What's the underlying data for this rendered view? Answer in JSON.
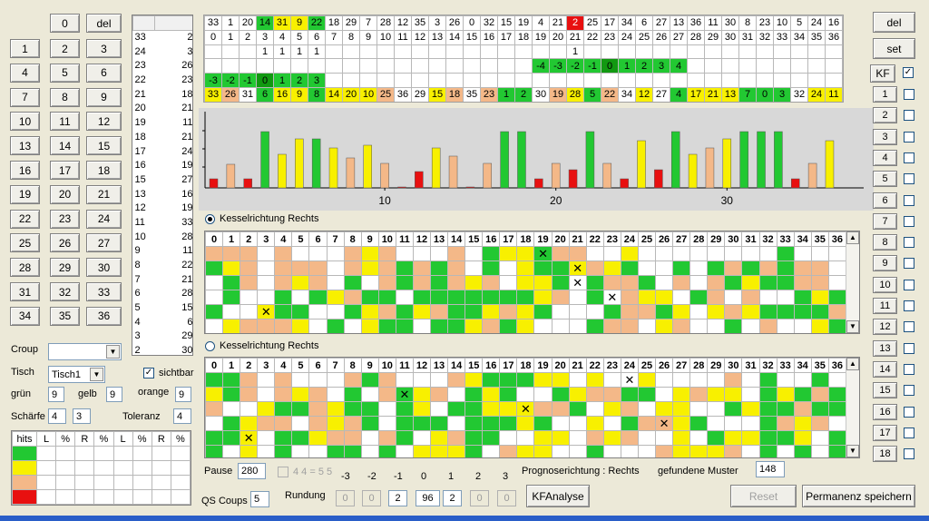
{
  "keypad": {
    "top": [
      "0",
      "del"
    ],
    "numbers": [
      "1",
      "2",
      "3",
      "4",
      "5",
      "6",
      "7",
      "8",
      "9",
      "10",
      "11",
      "12",
      "13",
      "14",
      "15",
      "16",
      "17",
      "18",
      "19",
      "20",
      "21",
      "22",
      "23",
      "24",
      "25",
      "26",
      "27",
      "28",
      "29",
      "30",
      "31",
      "32",
      "33",
      "34",
      "35",
      "36"
    ]
  },
  "side_list": [
    [
      "",
      ""
    ],
    [
      "33",
      "2"
    ],
    [
      "24",
      "3"
    ],
    [
      "23",
      "26"
    ],
    [
      "22",
      "23"
    ],
    [
      "21",
      "18"
    ],
    [
      "20",
      "21"
    ],
    [
      "19",
      "11"
    ],
    [
      "18",
      "21"
    ],
    [
      "17",
      "24"
    ],
    [
      "16",
      "19"
    ],
    [
      "15",
      "27"
    ],
    [
      "13",
      "16"
    ],
    [
      "12",
      "19"
    ],
    [
      "11",
      "33"
    ],
    [
      "10",
      "28"
    ],
    [
      "9",
      "11"
    ],
    [
      "8",
      "22"
    ],
    [
      "7",
      "21"
    ],
    [
      "6",
      "28"
    ],
    [
      "5",
      "15"
    ],
    [
      "4",
      "6"
    ],
    [
      "3",
      "29"
    ],
    [
      "2",
      "30"
    ]
  ],
  "top_table": {
    "row1": [
      [
        "33",
        "w"
      ],
      [
        "1",
        "w"
      ],
      [
        "20",
        "w"
      ],
      [
        "14",
        "g"
      ],
      [
        "31",
        "y"
      ],
      [
        "9",
        "y"
      ],
      [
        "22",
        "g"
      ],
      [
        "18",
        "w"
      ],
      [
        "29",
        "w"
      ],
      [
        "7",
        "w"
      ],
      [
        "28",
        "w"
      ],
      [
        "12",
        "w"
      ],
      [
        "35",
        "w"
      ],
      [
        "3",
        "w"
      ],
      [
        "26",
        "w"
      ],
      [
        "0",
        "w"
      ],
      [
        "32",
        "w"
      ],
      [
        "15",
        "w"
      ],
      [
        "19",
        "w"
      ],
      [
        "4",
        "w"
      ],
      [
        "21",
        "w"
      ],
      [
        "2",
        "r"
      ],
      [
        "25",
        "w"
      ],
      [
        "17",
        "w"
      ],
      [
        "34",
        "w"
      ],
      [
        "6",
        "w"
      ],
      [
        "27",
        "w"
      ],
      [
        "13",
        "w"
      ],
      [
        "36",
        "w"
      ],
      [
        "11",
        "w"
      ],
      [
        "30",
        "w"
      ],
      [
        "8",
        "w"
      ],
      [
        "23",
        "w"
      ],
      [
        "10",
        "w"
      ],
      [
        "5",
        "w"
      ],
      [
        "24",
        "w"
      ],
      [
        "16",
        "w"
      ]
    ],
    "row2": [
      "0",
      "1",
      "2",
      "3",
      "4",
      "5",
      "6",
      "7",
      "8",
      "9",
      "10",
      "11",
      "12",
      "13",
      "14",
      "15",
      "16",
      "17",
      "18",
      "19",
      "20",
      "21",
      "22",
      "23",
      "24",
      "25",
      "26",
      "27",
      "28",
      "29",
      "30",
      "31",
      "32",
      "33",
      "34",
      "35",
      "36"
    ],
    "row3": [
      [
        "",
        ""
      ],
      [
        "",
        ""
      ],
      [
        "",
        ""
      ],
      [
        "1",
        "w"
      ],
      [
        "1",
        "w"
      ],
      [
        "1",
        "w"
      ],
      [
        "1",
        "w"
      ],
      [
        "",
        ""
      ],
      [
        "",
        ""
      ],
      [
        "",
        ""
      ],
      [
        "",
        ""
      ],
      [
        "",
        ""
      ],
      [
        "",
        ""
      ],
      [
        "",
        ""
      ],
      [
        "",
        ""
      ],
      [
        "",
        ""
      ],
      [
        "",
        ""
      ],
      [
        "",
        ""
      ],
      [
        "",
        ""
      ],
      [
        "",
        ""
      ],
      [
        "",
        ""
      ],
      [
        "1",
        "w"
      ],
      [
        "",
        ""
      ],
      [
        "",
        ""
      ],
      [
        "",
        ""
      ],
      [
        "",
        ""
      ],
      [
        "",
        ""
      ],
      [
        "",
        ""
      ],
      [
        "",
        ""
      ],
      [
        "",
        ""
      ],
      [
        "",
        ""
      ],
      [
        "",
        ""
      ],
      [
        "",
        ""
      ],
      [
        "",
        ""
      ],
      [
        "",
        ""
      ],
      [
        "",
        ""
      ],
      [
        "",
        ""
      ]
    ],
    "row4": [
      [
        "",
        ""
      ],
      [
        "",
        ""
      ],
      [
        "",
        ""
      ],
      [
        "",
        ""
      ],
      [
        "",
        ""
      ],
      [
        "",
        ""
      ],
      [
        "",
        ""
      ],
      [
        "",
        ""
      ],
      [
        "",
        ""
      ],
      [
        "",
        ""
      ],
      [
        "",
        ""
      ],
      [
        "",
        ""
      ],
      [
        "",
        ""
      ],
      [
        "",
        ""
      ],
      [
        "",
        ""
      ],
      [
        "",
        ""
      ],
      [
        "",
        ""
      ],
      [
        "",
        ""
      ],
      [
        "",
        ""
      ],
      [
        "-4",
        "g"
      ],
      [
        "-3",
        "g"
      ],
      [
        "-2",
        "g"
      ],
      [
        "-1",
        "g"
      ],
      [
        "0",
        "dg"
      ],
      [
        "1",
        "g"
      ],
      [
        "2",
        "g"
      ],
      [
        "3",
        "g"
      ],
      [
        "4",
        "g"
      ],
      [
        "",
        ""
      ],
      [
        "",
        ""
      ],
      [
        "",
        ""
      ],
      [
        "",
        ""
      ],
      [
        "",
        ""
      ],
      [
        "",
        ""
      ],
      [
        "",
        ""
      ],
      [
        "",
        ""
      ],
      [
        "",
        ""
      ]
    ],
    "row5": [
      [
        "-3",
        "g"
      ],
      [
        "-2",
        "g"
      ],
      [
        "-1",
        "g"
      ],
      [
        "0",
        "dg"
      ],
      [
        "1",
        "g"
      ],
      [
        "2",
        "g"
      ],
      [
        "3",
        "g"
      ],
      [
        "",
        ""
      ],
      [
        "",
        ""
      ],
      [
        "",
        ""
      ],
      [
        "",
        ""
      ],
      [
        "",
        ""
      ],
      [
        "",
        ""
      ],
      [
        "",
        ""
      ],
      [
        "",
        ""
      ],
      [
        "",
        ""
      ],
      [
        "",
        ""
      ],
      [
        "",
        ""
      ],
      [
        "",
        ""
      ],
      [
        "",
        ""
      ],
      [
        "",
        ""
      ],
      [
        "",
        ""
      ],
      [
        "",
        ""
      ],
      [
        "",
        ""
      ],
      [
        "",
        ""
      ],
      [
        "",
        ""
      ],
      [
        "",
        ""
      ],
      [
        "",
        ""
      ],
      [
        "",
        ""
      ],
      [
        "",
        ""
      ],
      [
        "",
        ""
      ],
      [
        "",
        ""
      ],
      [
        "",
        ""
      ],
      [
        "",
        ""
      ],
      [
        "",
        ""
      ],
      [
        "",
        ""
      ],
      [
        "",
        ""
      ]
    ],
    "row6": [
      [
        "33",
        "y"
      ],
      [
        "26",
        "o"
      ],
      [
        "31",
        "w"
      ],
      [
        "6",
        "g"
      ],
      [
        "16",
        "y"
      ],
      [
        "9",
        "y"
      ],
      [
        "8",
        "g"
      ],
      [
        "14",
        "y"
      ],
      [
        "20",
        "y"
      ],
      [
        "10",
        "y"
      ],
      [
        "25",
        "o"
      ],
      [
        "36",
        "w"
      ],
      [
        "29",
        "w"
      ],
      [
        "15",
        "y"
      ],
      [
        "18",
        "o"
      ],
      [
        "35",
        "w"
      ],
      [
        "23",
        "o"
      ],
      [
        "1",
        "g"
      ],
      [
        "2",
        "g"
      ],
      [
        "30",
        "w"
      ],
      [
        "19",
        "o"
      ],
      [
        "28",
        "y"
      ],
      [
        "5",
        "g"
      ],
      [
        "22",
        "o"
      ],
      [
        "34",
        "w"
      ],
      [
        "12",
        "y"
      ],
      [
        "27",
        "w"
      ],
      [
        "4",
        "g"
      ],
      [
        "17",
        "y"
      ],
      [
        "21",
        "y"
      ],
      [
        "13",
        "y"
      ],
      [
        "7",
        "g"
      ],
      [
        "0",
        "g"
      ],
      [
        "3",
        "g"
      ],
      [
        "32",
        "w"
      ],
      [
        "24",
        "y"
      ],
      [
        "11",
        "y"
      ]
    ]
  },
  "bar_chart": {
    "colors": [
      "r",
      "o",
      "r",
      "g",
      "y",
      "y",
      "g",
      "y",
      "o",
      "y",
      "o",
      "r",
      "r",
      "y",
      "o",
      "r",
      "o",
      "g",
      "g",
      "r",
      "o",
      "r",
      "g",
      "o",
      "r",
      "y",
      "r",
      "g",
      "y",
      "o",
      "y",
      "g",
      "g",
      "g",
      "r",
      "o",
      "y"
    ],
    "values": [
      10,
      26,
      10,
      62,
      37,
      54,
      54,
      44,
      33,
      47,
      27,
      1,
      18,
      44,
      35,
      1,
      27,
      62,
      62,
      10,
      27,
      20,
      62,
      27,
      10,
      52,
      20,
      62,
      37,
      44,
      54,
      62,
      62,
      62,
      10,
      27,
      52
    ],
    "x_ticks": [
      "10",
      "20",
      "30"
    ]
  },
  "grid1": {
    "radio_label": "Kesselrichtung Rechts",
    "headers": [
      "0",
      "1",
      "2",
      "3",
      "4",
      "5",
      "6",
      "7",
      "8",
      "9",
      "10",
      "11",
      "12",
      "13",
      "14",
      "15",
      "16",
      "17",
      "18",
      "19",
      "20",
      "21",
      "22",
      "23",
      "24",
      "25",
      "26",
      "27",
      "28",
      "29",
      "30",
      "31",
      "32",
      "33",
      "34",
      "35",
      "36"
    ],
    "rows": [
      "ooowowwwoyowwwowgyygoowwywwwwwwwwgwwww",
      "gyowooowoyogogowgwyggyoygwwgwgogogoow",
      "wgowoyowgwogogoyowyygwgoogwowogyggoow",
      "wgwwgwgyoggwgggggggyowgwoyywgowowwgyg",
      "gwwyggwwgyogyoggyoygwwwgoogywyoyggggo",
      "wyoooywgwyggwggyogywwwgoowyowwgwowwyg",
      "yogywggygwggogwgyywgggyowwwgwwwgwowwg"
    ],
    "marks": [
      [
        0,
        19
      ],
      [
        1,
        21
      ],
      [
        2,
        21
      ],
      [
        3,
        23
      ],
      [
        4,
        3
      ]
    ]
  },
  "grid2": {
    "radio_label": "Kesselrichtung Rechts",
    "headers": [
      "0",
      "1",
      "2",
      "3",
      "4",
      "5",
      "6",
      "7",
      "8",
      "9",
      "10",
      "11",
      "12",
      "13",
      "14",
      "15",
      "16",
      "17",
      "18",
      "19",
      "20",
      "21",
      "22",
      "23",
      "24",
      "25",
      "26",
      "27",
      "28",
      "29",
      "30",
      "31",
      "32",
      "33",
      "34",
      "35",
      "36"
    ],
    "rows": [
      "ggowowwwogowwwoygggyywywwywwwwowgwwgw",
      "ygowoyowgwogyowgygwwgyooggwyoyywgygog",
      "owwyggoyggwgywggyyyoogwyowyywwgyggogg",
      "wgyoowoyogwgggwgggygwwywgooygwwwgoyow",
      "ggywggyoowogwyoggwwyywoyowwywgyyggywg",
      "gwywgwwggwgwyyygwoyywwgwwwoyyyowgwgwg",
      "yogwwgwwwwywwgwwwwwwwwwwwywwwwwwwwwyg"
    ],
    "marks": [
      [
        0,
        24
      ],
      [
        1,
        11
      ],
      [
        2,
        18
      ],
      [
        3,
        26
      ],
      [
        4,
        2
      ]
    ]
  },
  "left_controls": {
    "croup_label": "Croup",
    "croup_value": "",
    "tisch_label": "Tisch",
    "tisch_value": "Tisch1",
    "sichtbar_label": "sichtbar",
    "gruen_label": "grün",
    "gruen_value": "9",
    "gelb_label": "gelb",
    "gelb_value": "9",
    "orange_label": "orange",
    "orange_value": "9",
    "schaerfe_label": "Schärfe",
    "schaerfe_v1": "4",
    "schaerfe_v2": "3",
    "toleranz_label": "Toleranz",
    "toleranz_value": "4"
  },
  "hits_table": {
    "headers": [
      "hits",
      "L",
      "%",
      "R",
      "%",
      "L",
      "%",
      "R",
      "%"
    ],
    "row_colors": [
      "#22c832",
      "#f8f000",
      "#f4b888",
      "#e81010"
    ]
  },
  "bottom": {
    "pause_label": "Pause",
    "pause_value": "280",
    "check_label": "4 4 = 5 5",
    "qs_label": "QS Coups",
    "qs_value": "5",
    "rundung_label": "Rundung",
    "rundung_headers": [
      "-3",
      "-2",
      "-1",
      "0",
      "1",
      "2",
      "3"
    ],
    "rundung_values": [
      "0",
      "0",
      "2",
      "96",
      "2",
      "0",
      "0"
    ],
    "kfanalyse": "KFAnalyse",
    "prognose_label": "Prognoserichtung : Rechts",
    "muster_label": "gefundene Muster",
    "muster_value": "148",
    "reset": "Reset",
    "permanenz": "Permanenz speichern"
  },
  "right_panel": {
    "del": "del",
    "set": "set",
    "kf": "KF",
    "numbers": [
      "1",
      "2",
      "3",
      "4",
      "5",
      "6",
      "7",
      "8",
      "9",
      "10",
      "11",
      "12",
      "13",
      "14",
      "15",
      "16",
      "17",
      "18"
    ]
  }
}
